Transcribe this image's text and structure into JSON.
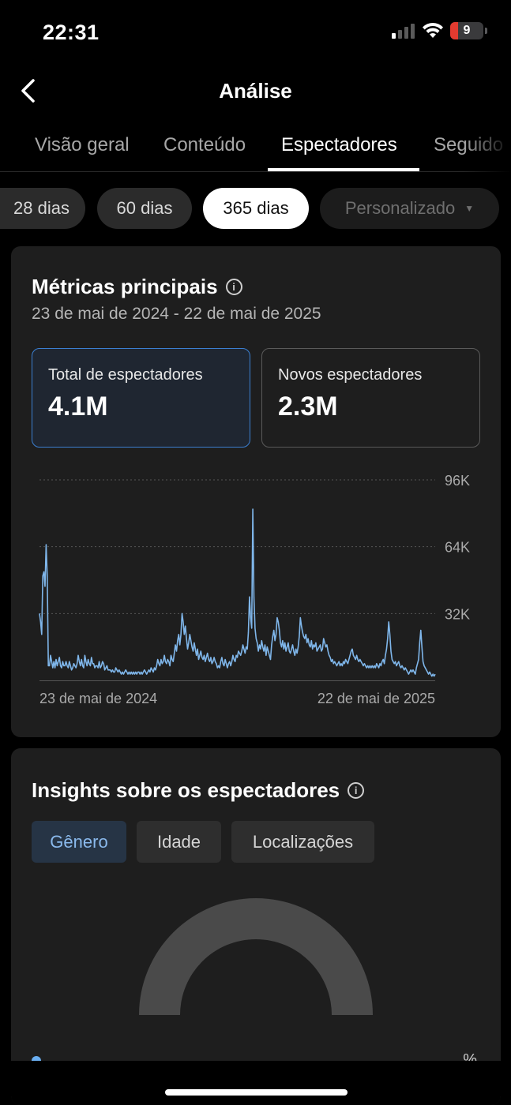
{
  "status_bar": {
    "time": "22:31",
    "battery_level": "9"
  },
  "nav": {
    "title": "Análise"
  },
  "tabs": [
    {
      "label": "Visão geral"
    },
    {
      "label": "Conteúdo"
    },
    {
      "label": "Espectadores",
      "active": true
    },
    {
      "label": "Seguido"
    }
  ],
  "periods": [
    {
      "label": "28 dias"
    },
    {
      "label": "60 dias"
    },
    {
      "label": "365 dias",
      "active": true
    },
    {
      "label": "Personalizado",
      "disabled": true
    }
  ],
  "key_metrics": {
    "title": "Métricas principais",
    "date_range": "23 de mai de 2024 - 22 de mai de 2025",
    "cards": [
      {
        "label": "Total de espectadores",
        "value": "4.1M",
        "active": true
      },
      {
        "label": "Novos espectadores",
        "value": "2.3M"
      }
    ]
  },
  "chart_data": {
    "type": "line",
    "x_start_label": "23 de mai de 2024",
    "x_end_label": "22 de mai de 2025",
    "y_ticks": [
      "96K",
      "64K",
      "32K"
    ],
    "y_tick_values": [
      96000,
      64000,
      32000
    ],
    "ylim": [
      0,
      96000
    ],
    "grid": true,
    "color": "#7fb6ea",
    "series": [
      {
        "values": [
          32000,
          28000,
          22000,
          50000,
          52000,
          45000,
          65000,
          50000,
          7000,
          7000,
          12000,
          9000,
          6000,
          9000,
          6000,
          10000,
          7000,
          9000,
          11000,
          7000,
          6000,
          9000,
          7000,
          7000,
          9000,
          7000,
          6000,
          9000,
          7000,
          5000,
          6000,
          8000,
          7000,
          6000,
          8000,
          12000,
          9000,
          7000,
          10000,
          7000,
          6000,
          12000,
          9000,
          7000,
          10000,
          8000,
          7000,
          11000,
          8000,
          8000,
          6000,
          7000,
          7000,
          6000,
          9000,
          6000,
          7000,
          9000,
          8000,
          5000,
          6000,
          7000,
          5000,
          5000,
          5000,
          4000,
          5000,
          4000,
          4000,
          6000,
          5000,
          4000,
          5000,
          4000,
          3000,
          4000,
          3000,
          4000,
          5000,
          4000,
          3000,
          4000,
          3000,
          4000,
          3000,
          4000,
          3000,
          4000,
          3000,
          4000,
          4000,
          3000,
          4000,
          3000,
          4000,
          5000,
          4000,
          3000,
          4000,
          5000,
          4000,
          6000,
          5000,
          4000,
          6000,
          5000,
          7000,
          10000,
          8000,
          7000,
          10000,
          8000,
          9000,
          12000,
          9000,
          8000,
          10000,
          9000,
          7000,
          12000,
          10000,
          9000,
          13000,
          17000,
          14000,
          19000,
          22000,
          17000,
          22000,
          32000,
          28000,
          22000,
          26000,
          20000,
          15000,
          18000,
          22000,
          19000,
          16000,
          14000,
          18000,
          15000,
          12000,
          15000,
          10000,
          12000,
          14000,
          11000,
          10000,
          12000,
          9000,
          11000,
          13000,
          10000,
          9000,
          11000,
          8000,
          9000,
          11000,
          9000,
          8000,
          6000,
          7000,
          6000,
          9000,
          11000,
          8000,
          7000,
          10000,
          8000,
          6000,
          8000,
          9000,
          7000,
          9000,
          12000,
          10000,
          9000,
          12000,
          11000,
          14000,
          13000,
          12000,
          14000,
          17000,
          15000,
          13000,
          16000,
          15000,
          23000,
          40000,
          30000,
          25000,
          82000,
          40000,
          25000,
          20000,
          18000,
          14000,
          17000,
          15000,
          19000,
          16000,
          14000,
          17000,
          12000,
          16000,
          14000,
          12000,
          10000,
          17000,
          21000,
          24000,
          19000,
          22000,
          30000,
          28000,
          24000,
          18000,
          16000,
          19000,
          15000,
          18000,
          14000,
          16000,
          18000,
          14000,
          13000,
          15000,
          17000,
          14000,
          12000,
          15000,
          13000,
          16000,
          21000,
          30000,
          26000,
          23000,
          21000,
          20000,
          22000,
          18000,
          20000,
          17000,
          16000,
          19000,
          15000,
          17000,
          16000,
          18000,
          14000,
          15000,
          16000,
          17000,
          14000,
          15000,
          20000,
          18000,
          16000,
          17000,
          14000,
          12000,
          11000,
          9000,
          10000,
          8000,
          9000,
          8000,
          7000,
          8000,
          9000,
          7000,
          8000,
          7000,
          9000,
          8000,
          10000,
          9000,
          8000,
          10000,
          12000,
          14000,
          15000,
          12000,
          11000,
          10000,
          12000,
          10000,
          9000,
          10000,
          9000,
          8000,
          7000,
          8000,
          7000,
          6000,
          7000,
          6000,
          7000,
          6000,
          7000,
          6000,
          7000,
          6000,
          8000,
          7000,
          6000,
          8000,
          7000,
          9000,
          10000,
          8000,
          12000,
          15000,
          20000,
          28000,
          22000,
          14000,
          10000,
          9000,
          8000,
          9000,
          7000,
          8000,
          9000,
          7000,
          6000,
          7000,
          6000,
          5000,
          6000,
          5000,
          4000,
          3000,
          4000,
          5000,
          4000,
          5000,
          4000,
          3000,
          6000,
          8000,
          10000,
          18000,
          24000,
          16000,
          9000,
          7000,
          6000,
          5000,
          4000,
          3000,
          4000,
          3000,
          2000,
          3000,
          2000,
          3000
        ]
      }
    ]
  },
  "insights": {
    "title": "Insights sobre os espectadores",
    "segments": [
      {
        "label": "Gênero",
        "active": true
      },
      {
        "label": "Idade"
      },
      {
        "label": "Localizações"
      }
    ],
    "legend_percent": "%"
  },
  "colors": {
    "accent": "#3b7fd1",
    "chart_line": "#7fb6ea",
    "card_bg": "#1e1e1e",
    "battery_low": "#e33b30"
  }
}
